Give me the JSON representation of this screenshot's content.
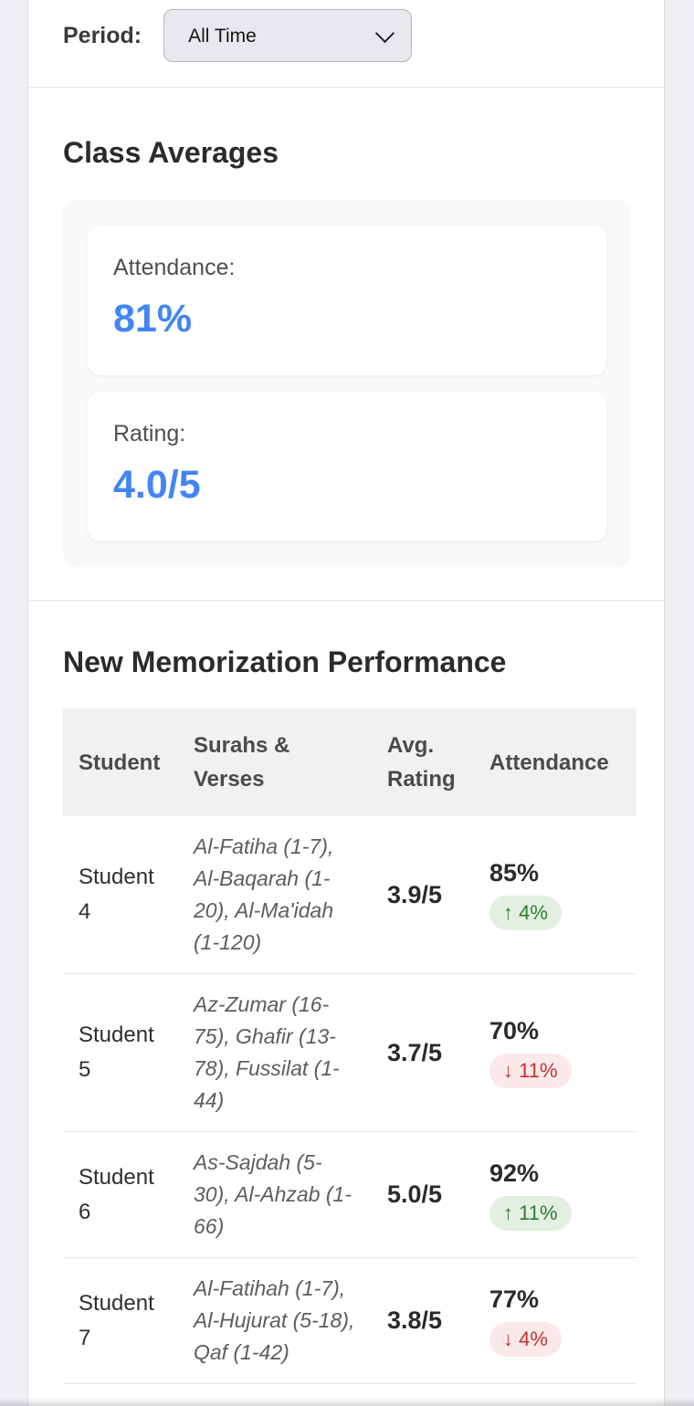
{
  "colors": {
    "accent_blue": "#4285f4",
    "trend_up_text": "#2e7d32",
    "trend_up_bg": "#e3efe1",
    "trend_down_text": "#c53030",
    "trend_down_bg": "#fbe9e9",
    "page_bg": "#eef0f4",
    "table_header_bg": "#f1f1f2"
  },
  "period": {
    "label": "Period:",
    "selected": "All Time"
  },
  "class_averages": {
    "title": "Class Averages",
    "stats": [
      {
        "label": "Attendance:",
        "value": "81%"
      },
      {
        "label": "Rating:",
        "value": "4.0/5"
      }
    ]
  },
  "performance": {
    "title": "New Memorization Performance",
    "columns": [
      "Student",
      "Surahs & Verses",
      "Avg. Rating",
      "Attendance"
    ],
    "rows": [
      {
        "student": "Student 4",
        "surahs": "Al-Fatiha (1-7), Al-Baqarah (1-20), Al-Ma'idah (1-120)",
        "avg_rating": "3.9/5",
        "attendance": "85%",
        "trend": {
          "direction": "up",
          "label": "↑ 4%"
        }
      },
      {
        "student": "Student 5",
        "surahs": "Az-Zumar (16-75), Ghafir (13-78), Fussilat (1-44)",
        "avg_rating": "3.7/5",
        "attendance": "70%",
        "trend": {
          "direction": "down",
          "label": "↓ 11%"
        }
      },
      {
        "student": "Student 6",
        "surahs": "As-Sajdah (5-30), Al-Ahzab (1-66)",
        "avg_rating": "5.0/5",
        "attendance": "92%",
        "trend": {
          "direction": "up",
          "label": "↑ 11%"
        }
      },
      {
        "student": "Student 7",
        "surahs": "Al-Fatihah (1-7), Al-Hujurat (5-18), Qaf (1-42)",
        "avg_rating": "3.8/5",
        "attendance": "77%",
        "trend": {
          "direction": "down",
          "label": "↓ 4%"
        }
      }
    ]
  }
}
